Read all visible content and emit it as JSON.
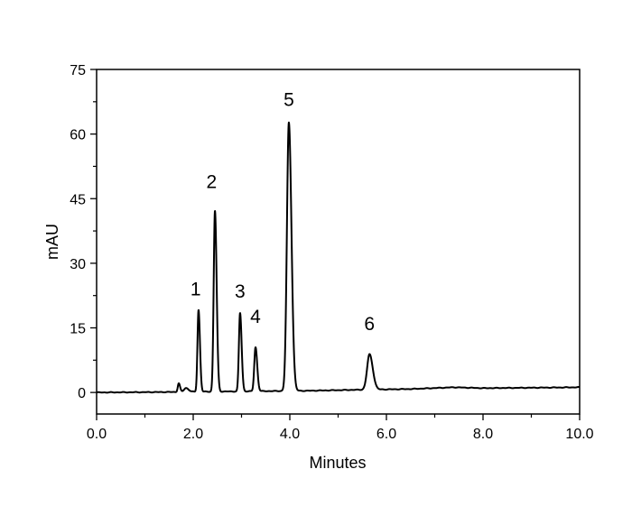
{
  "chart_data": {
    "type": "line",
    "title": "",
    "xlabel": "Minutes",
    "ylabel": "mAU",
    "xlim": [
      0,
      10
    ],
    "ylim": [
      -5,
      75
    ],
    "xticks": [
      0,
      2,
      4,
      6,
      8,
      10
    ],
    "xtick_labels": [
      "0.0",
      "2.0",
      "4.0",
      "6.0",
      "8.0",
      "10.0"
    ],
    "xminor_step": 1,
    "yticks": [
      0,
      15,
      30,
      45,
      60,
      75
    ],
    "ytick_labels": [
      "0",
      "15",
      "30",
      "45",
      "60",
      "75"
    ],
    "yminor_step": 7.5,
    "grid": false,
    "color": "#000000",
    "peaks": [
      {
        "label": "",
        "x": 1.7,
        "height": 2.0,
        "width": 0.02
      },
      {
        "label": "",
        "x": 1.85,
        "height": 0.9,
        "width": 0.04
      },
      {
        "label": "1",
        "x": 2.11,
        "height": 19.0,
        "width": 0.022
      },
      {
        "label": "2",
        "x": 2.45,
        "height": 42.0,
        "width": 0.026
      },
      {
        "label": "3",
        "x": 2.97,
        "height": 18.2,
        "width": 0.024
      },
      {
        "label": "4",
        "x": 3.29,
        "height": 10.2,
        "width": 0.026
      },
      {
        "label": "5",
        "x": 3.98,
        "height": 62.3,
        "width": 0.04
      },
      {
        "label": "6",
        "x": 5.65,
        "height": 8.2,
        "width": 0.05
      }
    ],
    "annotations": [
      {
        "text": "1",
        "x": 2.05,
        "y": 22.5
      },
      {
        "text": "2",
        "x": 2.38,
        "y": 47.5
      },
      {
        "text": "3",
        "x": 2.97,
        "y": 22
      },
      {
        "text": "4",
        "x": 3.29,
        "y": 16.2
      },
      {
        "text": "5",
        "x": 3.98,
        "y": 66.5
      },
      {
        "text": "6",
        "x": 5.65,
        "y": 14.5
      }
    ],
    "baseline": [
      [
        0,
        0
      ],
      [
        1.5,
        0.1
      ],
      [
        4.4,
        0.4
      ],
      [
        5.3,
        0.6
      ],
      [
        6.5,
        0.8
      ],
      [
        7.4,
        1.2
      ],
      [
        8,
        1.0
      ],
      [
        10,
        1.2
      ]
    ]
  }
}
